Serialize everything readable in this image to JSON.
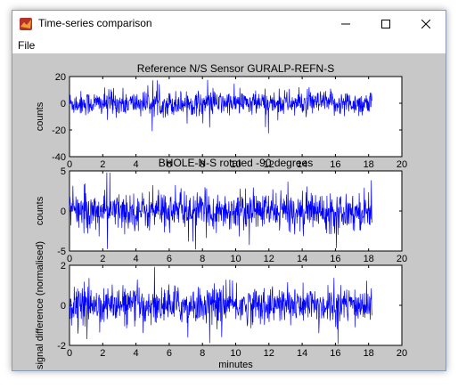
{
  "window": {
    "title": "Time-series comparison",
    "menu": [
      "File"
    ]
  },
  "colors": {
    "trace": "#0000ff",
    "figure_bg": "#c8c8c8",
    "axes_bg": "#ffffff"
  },
  "chart_data": [
    {
      "type": "line",
      "title": "Reference N/S Sensor GURALP-REFN-S",
      "xlabel": "",
      "ylabel": "counts",
      "xlim": [
        0,
        20
      ],
      "ylim": [
        -40,
        20
      ],
      "xticks": [
        0,
        2,
        4,
        6,
        8,
        10,
        12,
        14,
        16,
        18,
        20
      ],
      "yticks": [
        -40,
        -20,
        0,
        20
      ],
      "series": [
        {
          "x_end": 18.2,
          "amplitude": 10,
          "values": []
        }
      ]
    },
    {
      "type": "line",
      "title": "BHOLE-N-S rotated -90 degrees",
      "xlabel": "",
      "ylabel": "counts",
      "xlim": [
        0,
        20
      ],
      "ylim": [
        -5,
        5
      ],
      "xticks": [
        0,
        2,
        4,
        6,
        8,
        10,
        12,
        14,
        16,
        18,
        20
      ],
      "yticks": [
        -5,
        0,
        5
      ],
      "series": [
        {
          "x_end": 18.2,
          "amplitude": 2.5,
          "values": []
        }
      ]
    },
    {
      "type": "line",
      "title": "",
      "xlabel": "minutes",
      "ylabel": "signal difference (normalised)",
      "xlim": [
        0,
        20
      ],
      "ylim": [
        -2,
        2
      ],
      "xticks": [
        0,
        2,
        4,
        6,
        8,
        10,
        12,
        14,
        16,
        18,
        20
      ],
      "yticks": [
        -2,
        0,
        2
      ],
      "series": [
        {
          "x_end": 18.2,
          "amplitude": 1.0,
          "values": []
        }
      ]
    }
  ]
}
